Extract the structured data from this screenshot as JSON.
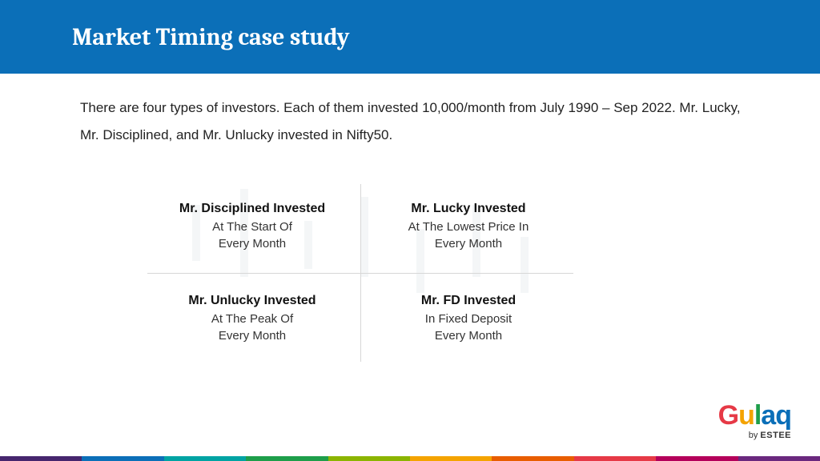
{
  "header": {
    "title": "Market Timing case study",
    "bg_color": "#0b6fb8",
    "title_color": "#ffffff"
  },
  "intro": {
    "text": "There are four types of investors. Each of them invested 10,000/month from July 1990 – Sep 2022. Mr. Lucky, Mr. Disciplined, and Mr. Unlucky invested in Nifty50."
  },
  "quadrant": {
    "divider_color": "#d7d7d7",
    "cells": [
      {
        "title": "Mr. Disciplined Invested",
        "subtitle": "At The Start Of\nEvery Month"
      },
      {
        "title": "Mr. Lucky Invested",
        "subtitle": "At The Lowest Price In\nEvery Month"
      },
      {
        "title": "Mr. Unlucky Invested",
        "subtitle": "At The Peak Of\nEvery Month"
      },
      {
        "title": "Mr. FD Invested",
        "subtitle": "In Fixed Deposit\nEvery Month"
      }
    ]
  },
  "logo": {
    "word": "Gulaq",
    "letter_colors": {
      "G": "#e63946",
      "u": "#f4a300",
      "l": "#1e9e4a",
      "a": "#0b6fb8",
      "q": "#0b6fb8"
    },
    "byline_prefix": "by ",
    "byline_brand": "ESTEE"
  },
  "footer_stripe_colors": [
    "#46266e",
    "#0b6fb8",
    "#00a3a3",
    "#1e9e4a",
    "#8bb400",
    "#f4a300",
    "#e85d00",
    "#e63946",
    "#b4005a",
    "#6a287e"
  ]
}
